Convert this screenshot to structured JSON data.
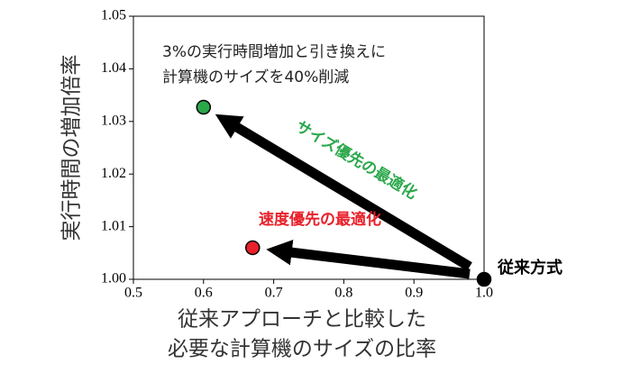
{
  "chart_data": {
    "type": "scatter",
    "annotation": [
      "3%の実行時間増加と引き換えに",
      "計算機のサイズを40%削減"
    ],
    "x_label": [
      "従来アプローチと比較した",
      "必要な計算機のサイズの比率"
    ],
    "y_label": "実行時間の増加倍率",
    "xlim": [
      0.5,
      1.0
    ],
    "xticks": [
      0.5,
      0.6,
      0.7,
      0.8,
      0.9,
      {
        "value": 1,
        "label": "1.0"
      }
    ],
    "ylim": [
      1.0,
      1.05
    ],
    "yticks": [
      {
        "value": 1,
        "label": "1.00"
      },
      1.01,
      1.02,
      1.03,
      1.04,
      1.05
    ],
    "series": [
      {
        "name": "従来方式",
        "color": "#000000",
        "x": [
          1.0
        ],
        "values": [
          1.0
        ]
      },
      {
        "name": "サイズ優先の最適化",
        "color": "#2aa84a",
        "x": [
          0.6
        ],
        "values": [
          1.0327
        ]
      },
      {
        "name": "速度優先の最適化",
        "color": "#e8202a",
        "x": [
          0.67
        ],
        "values": [
          1.006
        ]
      }
    ]
  }
}
